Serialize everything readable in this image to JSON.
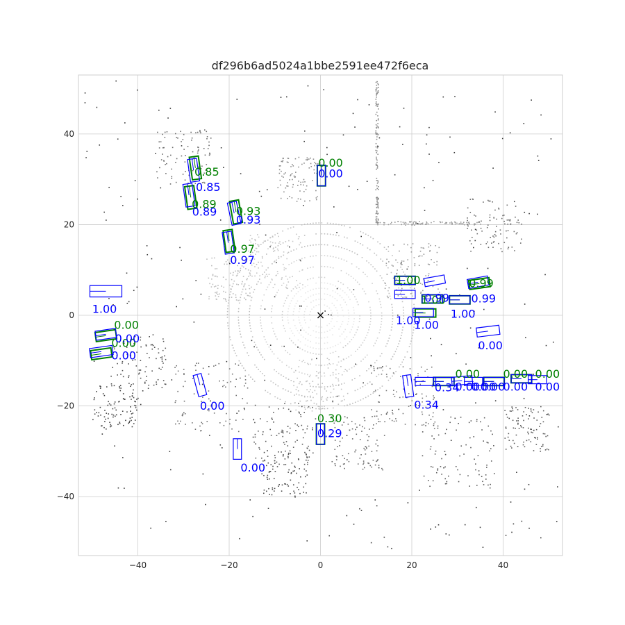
{
  "chart_data": {
    "type": "scatter",
    "title": "df296b6ad5024a1bbe2591ee472f6eca",
    "xlim": [
      -53,
      53
    ],
    "ylim": [
      -53,
      53
    ],
    "xticks": [
      -40,
      -20,
      0,
      20,
      40
    ],
    "yticks": [
      40,
      20,
      0,
      -20,
      -40
    ],
    "grid": true,
    "background": "#ffffff",
    "colors": {
      "ground_truth": "#008000",
      "prediction": "#0000ff",
      "points": "#404040",
      "grid": "#cccccc",
      "text": "#262626"
    },
    "ego_marker": {
      "x": 0,
      "y": 0,
      "symbol": "x"
    },
    "series": [
      {
        "role": "ground_truth",
        "boxes": [
          {
            "cx": -27.4,
            "cy": 32.5,
            "w": 2.0,
            "l": 5.0,
            "angle": 8,
            "label": "0.85",
            "lx": -27.6,
            "ly": 30.8
          },
          {
            "cx": -28.4,
            "cy": 26.0,
            "w": 2.0,
            "l": 5.0,
            "angle": 8,
            "label": "0.89",
            "lx": -28.2,
            "ly": 23.7
          },
          {
            "cx": -18.5,
            "cy": 22.8,
            "w": 2.0,
            "l": 5.0,
            "angle": 10,
            "label": "0.93",
            "lx": -18.5,
            "ly": 22.1
          },
          {
            "cx": -20.0,
            "cy": 16.4,
            "w": 2.0,
            "l": 4.8,
            "angle": 8,
            "label": "0.97",
            "lx": -19.8,
            "ly": 13.8
          },
          {
            "cx": 0.2,
            "cy": 30.8,
            "w": 1.8,
            "l": 4.5,
            "angle": 0,
            "label": "0.00",
            "lx": -0.5,
            "ly": 32.8
          },
          {
            "cx": 18.5,
            "cy": 7.7,
            "w": 1.8,
            "l": 4.5,
            "angle": 90,
            "label": "1.00",
            "lx": 16.5,
            "ly": 6.9
          },
          {
            "cx": 24.5,
            "cy": 3.6,
            "w": 1.8,
            "l": 4.5,
            "angle": 90,
            "label": "1.00",
            "lx": 22.0,
            "ly": 2.5
          },
          {
            "cx": 30.5,
            "cy": 3.4,
            "w": 1.8,
            "l": 4.5,
            "angle": 90,
            "label": "",
            "lx": 0,
            "ly": 0
          },
          {
            "cx": 34.8,
            "cy": 7.0,
            "w": 2.0,
            "l": 4.5,
            "angle": 98,
            "label": "0.99",
            "lx": 32.5,
            "ly": 6.2
          },
          {
            "cx": 23.0,
            "cy": 0.5,
            "w": 1.8,
            "l": 4.5,
            "angle": 90,
            "label": "",
            "lx": 0,
            "ly": 0
          },
          {
            "cx": -47.0,
            "cy": -4.5,
            "w": 2.0,
            "l": 4.5,
            "angle": 98,
            "label": "0.00",
            "lx": -45.2,
            "ly": -3.0
          },
          {
            "cx": -48.0,
            "cy": -8.5,
            "w": 2.0,
            "l": 4.5,
            "angle": 98,
            "label": "0.00",
            "lx": -45.8,
            "ly": -7.0
          },
          {
            "cx": 27.0,
            "cy": -14.6,
            "w": 1.8,
            "l": 4.5,
            "angle": 90,
            "label": "0.00",
            "lx": 29.5,
            "ly": -13.8
          },
          {
            "cx": 38.0,
            "cy": -14.6,
            "w": 1.8,
            "l": 4.5,
            "angle": 90,
            "label": "0.00",
            "lx": 40.0,
            "ly": -13.8
          },
          {
            "cx": 44.0,
            "cy": -14.0,
            "w": 1.8,
            "l": 4.5,
            "angle": 90,
            "label": "0.00",
            "lx": 47.0,
            "ly": -13.8
          },
          {
            "cx": 0.0,
            "cy": -26.2,
            "w": 1.8,
            "l": 4.5,
            "angle": 0,
            "label": "0.30",
            "lx": -0.7,
            "ly": -23.6
          }
        ]
      },
      {
        "role": "prediction",
        "boxes": [
          {
            "cx": -27.8,
            "cy": 32.0,
            "w": 2.0,
            "l": 5.0,
            "angle": 8,
            "label": "0.85",
            "lx": -27.3,
            "ly": 27.4
          },
          {
            "cx": -28.8,
            "cy": 26.5,
            "w": 2.0,
            "l": 5.0,
            "angle": 8,
            "label": "0.89",
            "lx": -28.1,
            "ly": 22.0
          },
          {
            "cx": -18.9,
            "cy": 22.5,
            "w": 2.0,
            "l": 5.0,
            "angle": 12,
            "label": "0.93",
            "lx": -18.5,
            "ly": 20.2
          },
          {
            "cx": -20.2,
            "cy": 16.0,
            "w": 2.0,
            "l": 4.8,
            "angle": 8,
            "label": "0.97",
            "lx": -19.8,
            "ly": 11.3
          },
          {
            "cx": 0.2,
            "cy": 30.8,
            "w": 1.8,
            "l": 4.5,
            "angle": 0,
            "label": "0.00",
            "lx": -0.5,
            "ly": 30.4
          },
          {
            "cx": -47.0,
            "cy": 5.3,
            "w": 2.5,
            "l": 7.0,
            "angle": 90,
            "label": "1.00",
            "lx": -50.0,
            "ly": 0.5
          },
          {
            "cx": 18.5,
            "cy": 7.7,
            "w": 1.8,
            "l": 4.5,
            "angle": 90,
            "label": "",
            "lx": 0,
            "ly": 0
          },
          {
            "cx": 18.5,
            "cy": 4.6,
            "w": 1.8,
            "l": 4.5,
            "angle": 90,
            "label": "1.00",
            "lx": 16.5,
            "ly": -2.0
          },
          {
            "cx": 25.0,
            "cy": 7.6,
            "w": 1.8,
            "l": 4.5,
            "angle": 100,
            "label": "0.99",
            "lx": 22.8,
            "ly": 3.0
          },
          {
            "cx": 24.5,
            "cy": 3.6,
            "w": 1.8,
            "l": 4.5,
            "angle": 90,
            "label": "",
            "lx": 0,
            "ly": 0
          },
          {
            "cx": 22.5,
            "cy": 0.6,
            "w": 1.8,
            "l": 4.5,
            "angle": 90,
            "label": "1.00",
            "lx": 20.5,
            "ly": -3.0
          },
          {
            "cx": 30.5,
            "cy": 3.4,
            "w": 1.8,
            "l": 4.5,
            "angle": 90,
            "label": "1.00",
            "lx": 28.5,
            "ly": -0.5
          },
          {
            "cx": 34.5,
            "cy": 7.3,
            "w": 2.0,
            "l": 4.5,
            "angle": 100,
            "label": "0.99",
            "lx": 33.0,
            "ly": 2.8
          },
          {
            "cx": 36.7,
            "cy": -3.5,
            "w": 2.0,
            "l": 5.0,
            "angle": 97,
            "label": "0.00",
            "lx": 34.5,
            "ly": -7.5
          },
          {
            "cx": -47.0,
            "cy": -4.2,
            "w": 2.0,
            "l": 4.5,
            "angle": 98,
            "label": "0.00",
            "lx": -45.0,
            "ly": -6.0
          },
          {
            "cx": -48.0,
            "cy": -8.0,
            "w": 2.0,
            "l": 5.0,
            "angle": 98,
            "label": "0.00",
            "lx": -45.8,
            "ly": -9.7
          },
          {
            "cx": -26.4,
            "cy": -15.4,
            "w": 1.8,
            "l": 4.8,
            "angle": 15,
            "label": "0.00",
            "lx": -26.4,
            "ly": -20.8
          },
          {
            "cx": 19.2,
            "cy": -15.6,
            "w": 1.8,
            "l": 4.8,
            "angle": 8,
            "label": "0.34",
            "lx": 20.5,
            "ly": -20.6
          },
          {
            "cx": 23.0,
            "cy": -14.6,
            "w": 1.8,
            "l": 4.5,
            "angle": 90,
            "label": "",
            "lx": 0,
            "ly": 0
          },
          {
            "cx": 27.0,
            "cy": -14.6,
            "w": 1.8,
            "l": 4.5,
            "angle": 90,
            "label": "0.34",
            "lx": 25.0,
            "ly": -16.8
          },
          {
            "cx": 31.0,
            "cy": -14.4,
            "w": 1.8,
            "l": 4.5,
            "angle": 95,
            "label": "0.00",
            "lx": 29.5,
            "ly": -16.6
          },
          {
            "cx": 38.0,
            "cy": -14.6,
            "w": 1.8,
            "l": 4.5,
            "angle": 90,
            "label": "0.00",
            "lx": 35.0,
            "ly": -16.6
          },
          {
            "cx": 44.0,
            "cy": -14.0,
            "w": 1.8,
            "l": 4.5,
            "angle": 90,
            "label": "0.00",
            "lx": 40.0,
            "ly": -16.6
          },
          {
            "cx": 47.5,
            "cy": -14.2,
            "w": 1.8,
            "l": 4.0,
            "angle": 90,
            "label": "0.00",
            "lx": 47.0,
            "ly": -16.6
          },
          {
            "cx": -18.2,
            "cy": -29.5,
            "w": 1.8,
            "l": 4.5,
            "angle": 0,
            "label": "0.00",
            "lx": -17.5,
            "ly": -34.5
          },
          {
            "cx": 0.0,
            "cy": -26.2,
            "w": 1.8,
            "l": 4.5,
            "angle": 0,
            "label": "0.29",
            "lx": -0.7,
            "ly": -26.9
          },
          {
            "cx": 33.5,
            "cy": -14.6,
            "w": 1.8,
            "l": 4.0,
            "angle": 90,
            "label": "0.00",
            "lx": 33.0,
            "ly": -16.6
          }
        ]
      }
    ]
  }
}
